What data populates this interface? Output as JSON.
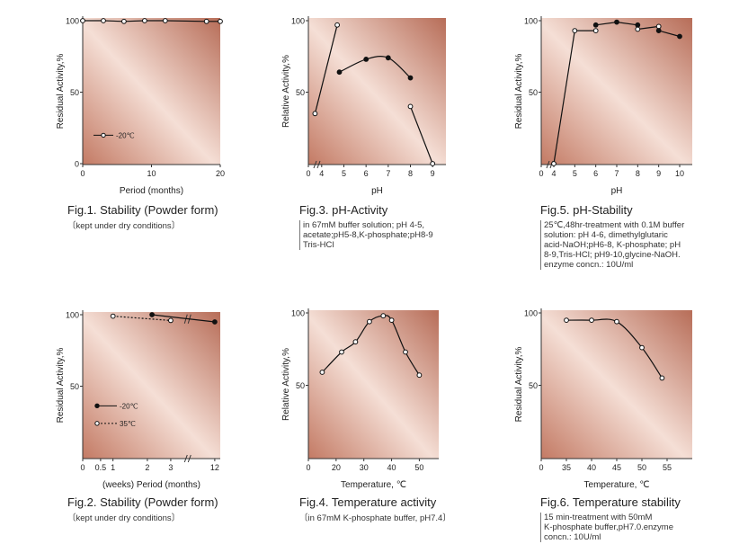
{
  "chart_data": [
    {
      "id": "fig1",
      "type": "line",
      "title": "Fig.1. Stability (Powder form)",
      "note": [
        "〔kept under dry conditions〕"
      ],
      "xlabel": "Period (months)",
      "ylabel": "Residual Activity,%",
      "xlim": [
        0,
        20
      ],
      "ylim": [
        0,
        100
      ],
      "xticks": [
        "0",
        "10",
        "20"
      ],
      "xtick_values": [
        0,
        10,
        20
      ],
      "yticks": [
        "0",
        "50",
        "100"
      ],
      "ytick_values": [
        0,
        50,
        100
      ],
      "series": [
        {
          "name": "-20℃",
          "style": "solid-open",
          "x": [
            0,
            3,
            6,
            9,
            12,
            18,
            20
          ],
          "y": [
            100,
            100,
            99.5,
            100,
            100,
            99.5,
            99.5
          ]
        }
      ]
    },
    {
      "id": "fig2",
      "type": "line",
      "title": "Fig.2. Stability (Powder form)",
      "note": [
        "〔kept under dry conditions〕"
      ],
      "xlabel": "(weeks) Period (months)",
      "ylabel": "Residual Activity,%",
      "ylim": [
        0,
        100
      ],
      "x_scale": "broken",
      "xticks": [
        "0",
        "0.5",
        "1",
        "2",
        "3",
        "12"
      ],
      "xtick_values": [
        0,
        0.5,
        1,
        2,
        3,
        12
      ],
      "yticks": [
        "50",
        "100"
      ],
      "ytick_values": [
        50,
        100
      ],
      "series": [
        {
          "name": "-20℃",
          "style": "solid-filled",
          "x": [
            2.2,
            12
          ],
          "y": [
            100,
            95
          ]
        },
        {
          "name": "35℃",
          "style": "dotted-open",
          "x": [
            1,
            3
          ],
          "y": [
            99,
            96
          ]
        }
      ]
    },
    {
      "id": "fig3",
      "type": "line",
      "title": "Fig.3. pH-Activity",
      "note": [
        "in 67mM buffer solution; pH 4-5,",
        "acetate;pH5-8,K-phosphate;pH8-9",
        "Tris-HCl"
      ],
      "xlabel": "pH",
      "ylabel": "Relative Activity,%",
      "xlim": [
        3.4,
        9.6
      ],
      "ylim": [
        0,
        100
      ],
      "x_break": true,
      "xticks": [
        "0",
        "4",
        "5",
        "6",
        "7",
        "8",
        "9"
      ],
      "xtick_values": [
        3.4,
        4,
        5,
        6,
        7,
        8,
        9
      ],
      "yticks": [
        "50",
        "100"
      ],
      "ytick_values": [
        50,
        100
      ],
      "series": [
        {
          "name": "acetate",
          "style": "solid-open",
          "x": [
            3.7,
            4.7
          ],
          "y": [
            35,
            97
          ]
        },
        {
          "name": "K-phosphate",
          "style": "solid-filled-smooth",
          "x": [
            4.8,
            6,
            7,
            8
          ],
          "y": [
            64,
            73,
            74,
            60
          ]
        },
        {
          "name": "Tris-HCl",
          "style": "solid-open",
          "x": [
            8,
            9
          ],
          "y": [
            40,
            0
          ]
        }
      ]
    },
    {
      "id": "fig4",
      "type": "line",
      "title": "Fig.4. Temperature activity",
      "note": [
        "〔in 67mM K-phosphate buffer, pH7.4〕"
      ],
      "xlabel": "Temperature, ℃",
      "ylabel": "Relative Activity,%",
      "xlim": [
        10,
        57
      ],
      "ylim": [
        0,
        100
      ],
      "xticks": [
        "0",
        "20",
        "30",
        "40",
        "50"
      ],
      "xtick_values": [
        10,
        20,
        30,
        40,
        50
      ],
      "yticks": [
        "50",
        "100"
      ],
      "ytick_values": [
        50,
        100
      ],
      "series": [
        {
          "name": "",
          "style": "solid-open-smooth",
          "x": [
            15,
            22,
            27,
            32,
            37,
            40,
            45,
            50
          ],
          "y": [
            59,
            73,
            80,
            94,
            98,
            95,
            73,
            57
          ]
        }
      ]
    },
    {
      "id": "fig5",
      "type": "line",
      "title": "Fig.5. pH-Stability",
      "note": [
        "25℃,48hr-treatment with 0.1M buffer",
        "solution: pH 4-6, dimethylglutaric",
        "acid-NaOH;pH6-8, K-phosphate; pH",
        "8-9,Tris-HCl; pH9-10,glycine-NaOH.",
        "enzyme concn.: 10U/ml"
      ],
      "xlabel": "pH",
      "ylabel": "Residual Activity,%",
      "xlim": [
        3.4,
        10.6
      ],
      "ylim": [
        0,
        100
      ],
      "x_break": true,
      "xticks": [
        "0",
        "4",
        "5",
        "6",
        "7",
        "8",
        "9",
        "10"
      ],
      "xtick_values": [
        3.4,
        4,
        5,
        6,
        7,
        8,
        9,
        10
      ],
      "yticks": [
        "50",
        "100"
      ],
      "ytick_values": [
        50,
        100
      ],
      "series": [
        {
          "name": "dimethylglutaric acid-NaOH",
          "style": "solid-open",
          "x": [
            4,
            5,
            6
          ],
          "y": [
            0,
            93,
            93
          ]
        },
        {
          "name": "K-phosphate",
          "style": "solid-filled",
          "x": [
            6,
            7,
            8
          ],
          "y": [
            97,
            99,
            97
          ]
        },
        {
          "name": "Tris-HCl",
          "style": "solid-open",
          "x": [
            8,
            9
          ],
          "y": [
            94,
            96
          ]
        },
        {
          "name": "glycine-NaOH",
          "style": "solid-filled",
          "x": [
            9,
            10
          ],
          "y": [
            93,
            89
          ]
        }
      ]
    },
    {
      "id": "fig6",
      "type": "line",
      "title": "Fig.6. Temperature stability",
      "note": [
        "15 min-treatment with 50mM",
        "K-phosphate buffer,pH7.0.enzyme",
        "concn.: 10U/ml"
      ],
      "xlabel": "Temperature, ℃",
      "ylabel": "Residual Activity,%",
      "xlim": [
        30,
        60
      ],
      "ylim": [
        0,
        100
      ],
      "xticks": [
        "0",
        "35",
        "40",
        "45",
        "50",
        "55"
      ],
      "xtick_values": [
        30,
        35,
        40,
        45,
        50,
        55
      ],
      "yticks": [
        "50",
        "100"
      ],
      "ytick_values": [
        50,
        100
      ],
      "series": [
        {
          "name": "",
          "style": "solid-open-smooth",
          "x": [
            35,
            40,
            45,
            50,
            54
          ],
          "y": [
            95,
            95,
            94,
            76,
            55
          ]
        }
      ]
    }
  ]
}
